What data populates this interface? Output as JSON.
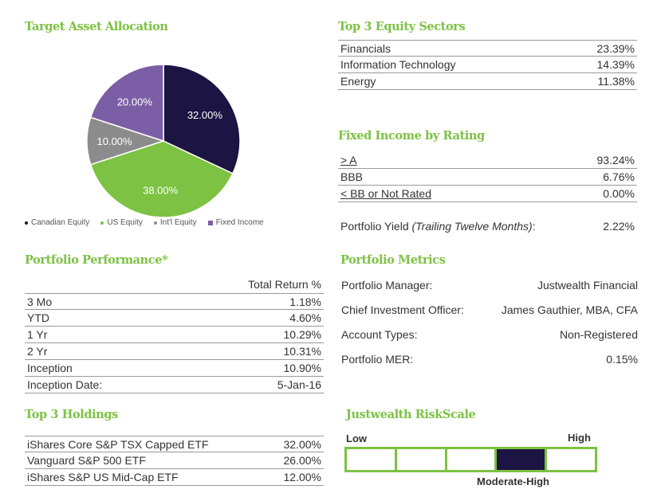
{
  "colors": {
    "accent_green": "#7dc242",
    "canadian_equity": "#1c1442",
    "us_equity": "#7dc242",
    "intl_equity": "#8c8c8c",
    "fixed_income": "#7c5ea6"
  },
  "allocation": {
    "title": "Target Asset Allocation",
    "legend": [
      "Canadian Equity",
      "US Equity",
      "Int'l Equity",
      "Fixed Income"
    ]
  },
  "chart_data": {
    "type": "pie",
    "title": "Target Asset Allocation",
    "labels": [
      "Canadian Equity",
      "US Equity",
      "Int'l Equity",
      "Fixed Income"
    ],
    "values": [
      32.0,
      38.0,
      10.0,
      20.0
    ],
    "value_labels": [
      "32.00%",
      "38.00%",
      "10.00%",
      "20.00%"
    ],
    "colors": [
      "#1c1442",
      "#7dc242",
      "#8c8c8c",
      "#7c5ea6"
    ],
    "legend_position": "bottom"
  },
  "sectors": {
    "title": "Top 3 Equity Sectors",
    "rows": [
      {
        "name": "Financials",
        "value": "23.39%"
      },
      {
        "name": "Information Technology",
        "value": "14.39%"
      },
      {
        "name": "Energy",
        "value": "11.38%"
      }
    ]
  },
  "fixed_income": {
    "title": "Fixed Income by Rating",
    "rows": [
      {
        "name": "> A",
        "value": "93.24%"
      },
      {
        "name": "BBB",
        "value": "6.76%"
      },
      {
        "name": "< BB or Not Rated",
        "value": "0.00%"
      }
    ],
    "yield_label": "Portfolio Yield",
    "yield_note": "(Trailing Twelve Months)",
    "yield_colon": ":",
    "yield_value": "2.22%"
  },
  "performance": {
    "title": "Portfolio Performance*",
    "column_header": "Total Return %",
    "rows": [
      {
        "name": "3 Mo",
        "value": "1.18%"
      },
      {
        "name": "YTD",
        "value": "4.60%"
      },
      {
        "name": "1 Yr",
        "value": "10.29%"
      },
      {
        "name": "2 Yr",
        "value": "10.31%"
      },
      {
        "name": "Inception",
        "value": "10.90%"
      },
      {
        "name": "Inception Date:",
        "value": "5-Jan-16"
      }
    ]
  },
  "metrics": {
    "title": "Portfolio Metrics",
    "rows": [
      {
        "name": "Portfolio Manager:",
        "value": "Justwealth Financial"
      },
      {
        "name": "Chief Investment Officer:",
        "value": "James Gauthier, MBA, CFA"
      },
      {
        "name": "Account Types:",
        "value": "Non-Registered"
      },
      {
        "name": "Portfolio MER:",
        "value": "0.15%"
      }
    ]
  },
  "holdings": {
    "title": "Top 3 Holdings",
    "rows": [
      {
        "name": "iShares Core S&P TSX Capped ETF",
        "value": "32.00%"
      },
      {
        "name": "Vanguard S&P 500 ETF",
        "value": "26.00%"
      },
      {
        "name": "iShares S&P US Mid-Cap ETF",
        "value": "12.00%"
      }
    ]
  },
  "risk": {
    "title": "Justwealth RiskScale",
    "low": "Low",
    "high": "High",
    "level_label": "Moderate-High",
    "segments": 5,
    "active_segment": 4
  }
}
